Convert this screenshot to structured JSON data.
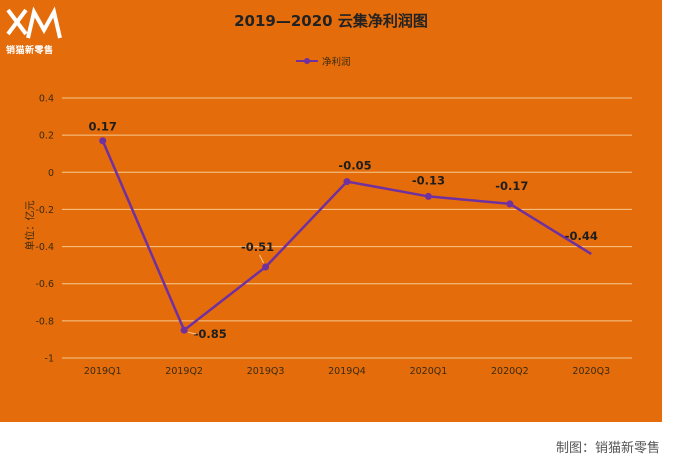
{
  "brand": {
    "logo_text": "销猫新零售"
  },
  "credit": "制图：销猫新零售",
  "colors": {
    "panel": "#e46c0a",
    "line": "#7030a0",
    "grid": "#f5c98f"
  },
  "chart_data": {
    "type": "line",
    "title": "2019—2020 云集净利润图",
    "ylabel": "单位：亿元",
    "xlabel": "",
    "categories": [
      "2019Q1",
      "2019Q2",
      "2019Q3",
      "2019Q4",
      "2020Q1",
      "2020Q2",
      "2020Q3"
    ],
    "series": [
      {
        "name": "净利润",
        "values": [
          0.17,
          -0.85,
          -0.51,
          -0.05,
          -0.13,
          -0.17,
          -0.44
        ],
        "labels": [
          "0.17",
          "-0.85",
          "-0.51",
          "-0.05",
          "-0.13",
          "-0.17",
          "-0.44"
        ]
      }
    ],
    "ylim": [
      -1,
      0.4
    ],
    "yticks": [
      0.4,
      0.2,
      0,
      -0.2,
      -0.4,
      -0.6,
      -0.8,
      -1
    ],
    "ytick_labels": [
      "0.4",
      "0.2",
      "0",
      "-0.2",
      "-0.4",
      "-0.6",
      "-0.8",
      "-1"
    ],
    "grid": true,
    "legend": "top-center"
  }
}
